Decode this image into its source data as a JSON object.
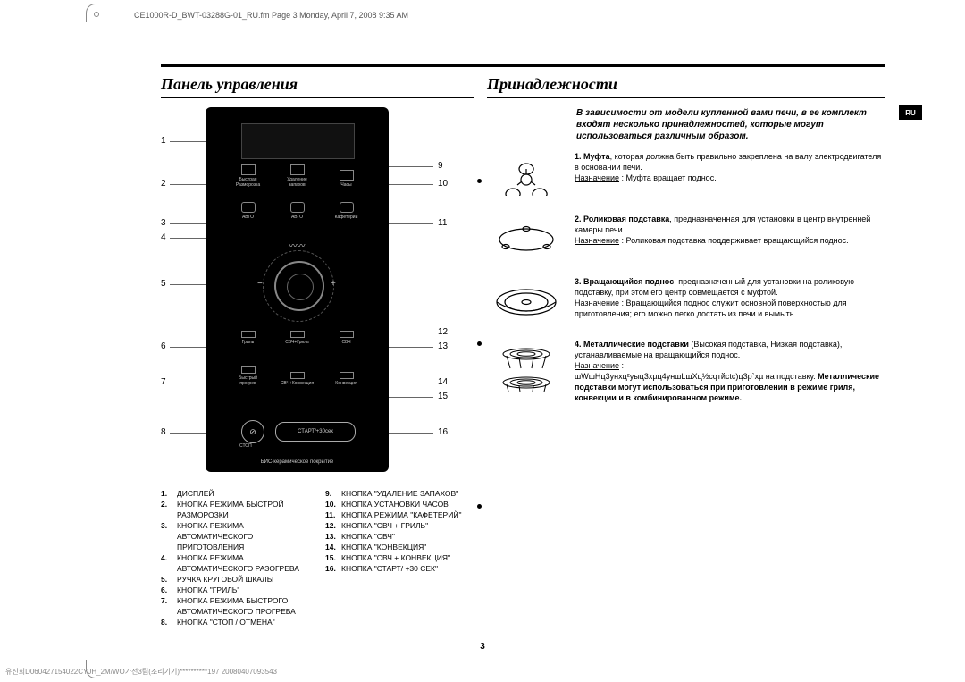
{
  "header": "CE1000R-D_BWT-03288G-01_RU.fm  Page 3  Monday, April 7, 2008  9:35 AM",
  "ru_tab": "RU",
  "page_number": "3",
  "footer_code": "유진희D060427154022CYJH_2M/WO가전3팀(조리기기)**********197 20080407093543",
  "left": {
    "title": "Панель управления",
    "panel": {
      "row1": [
        "Быстрая Разморозка",
        "Удаление запахов",
        "Часы"
      ],
      "row2": [
        "АВТО",
        "АВТО",
        "Кафетерий"
      ],
      "above_dial": "",
      "row3": [
        "Гриль",
        "СВЧ+Гриль",
        "СВЧ"
      ],
      "row4": [
        "Быстрый прогрев",
        "СВЧ+Конвекция",
        "Конвекция"
      ],
      "stop_label": "СТОП",
      "start_label": "СТАРТ/+30сек",
      "foot": "БИС-керамическое покрытие"
    },
    "callouts_left": [
      "1",
      "2",
      "3",
      "4",
      "5",
      "6",
      "7",
      "8"
    ],
    "callouts_right": [
      "9",
      "10",
      "11",
      "12",
      "13",
      "14",
      "15",
      "16"
    ],
    "list_left": [
      {
        "n": "1.",
        "t": "ДИСПЛЕЙ"
      },
      {
        "n": "2.",
        "t": "КНОПКА РЕЖИМА БЫСТРОЙ РАЗМОРОЗКИ"
      },
      {
        "n": "3.",
        "t": "КНОПКА РЕЖИМА АВТОМАТИЧЕСКОГО ПРИГОТОВЛЕНИЯ"
      },
      {
        "n": "4.",
        "t": "КНОПКА РЕЖИМА АВТОМАТИЧЕСКОГО РАЗОГРЕВА"
      },
      {
        "n": "5.",
        "t": "РУЧКА КРУГОВОЙ ШКАЛЫ"
      },
      {
        "n": "6.",
        "t": "КНОПКА \"ГРИЛЬ\""
      },
      {
        "n": "7.",
        "t": "КНОПКА РЕЖИМА БЫСТРОГО АВТОМАТИЧЕСКОГО ПРОГРЕВА"
      },
      {
        "n": "8.",
        "t": "КНОПКА \"СТОП / ОТМЕНА\""
      }
    ],
    "list_right": [
      {
        "n": "9.",
        "t": "КНОПКА \"УДАЛЕНИЕ ЗАПАХОВ\""
      },
      {
        "n": "10.",
        "t": "КНОПКА УСТАНОВКИ ЧАСОВ"
      },
      {
        "n": "11.",
        "t": "КНОПКА РЕЖИМА \"КАФЕТЕРИЙ\""
      },
      {
        "n": "12.",
        "t": "КНОПКА \"СВЧ + ГРИЛЬ\""
      },
      {
        "n": "13.",
        "t": "КНОПКА \"СВЧ\""
      },
      {
        "n": "14.",
        "t": "КНОПКА \"КОНВЕКЦИЯ\""
      },
      {
        "n": "15.",
        "t": "КНОПКА \"СВЧ + КОНВЕКЦИЯ\""
      },
      {
        "n": "16.",
        "t": "КНОПКА \"СТАРТ/ +30 СЕК\""
      }
    ]
  },
  "right": {
    "title": "Принадлежности",
    "intro": "В зависимости от модели купленной вами печи, в ее комплект входят несколько принадлежностей, которые могут использоваться различным образом.",
    "items": [
      {
        "n": "1.",
        "title": "Муфта",
        "body": ", которая должна быть правильно закреплена на валу электродвигателя в основании печи.",
        "purpose_label": "Назначение",
        "purpose": ": Муфта вращает поднос."
      },
      {
        "n": "2.",
        "title": "Роликовая подставка",
        "body": ", предназначенная для установки в центр внутренней камеры печи.",
        "purpose_label": "Назначение",
        "purpose": ": Роликовая подставка поддерживает вращающийся поднос."
      },
      {
        "n": "3.",
        "title": "Вращающийся поднос",
        "body": ", предназначенный для установки на роликовую подставку, при этом его центр совмещается с муфтой.",
        "purpose_label": "Назначение",
        "purpose": ": Вращающийся поднос служит основной поверхностью для приготовления; его можно легко достать из печи и вымыть."
      },
      {
        "n": "4.",
        "title": "Металлические подставки",
        "body": " (Высокая подставка, Низкая подставка), устанавливаемые на вращающийся поднос.",
        "purpose_label": "Назначение",
        "purpose": ":",
        "extra": "шWшНц3унхц²уыц3хµц4уншLшXц½сqтйсtс)ц3p`хµ на подставку. ",
        "bold_tail": "Металлические подставки могут использоваться при приготовлении в режиме гриля, конвекции и в комбинированном режиме."
      }
    ]
  }
}
